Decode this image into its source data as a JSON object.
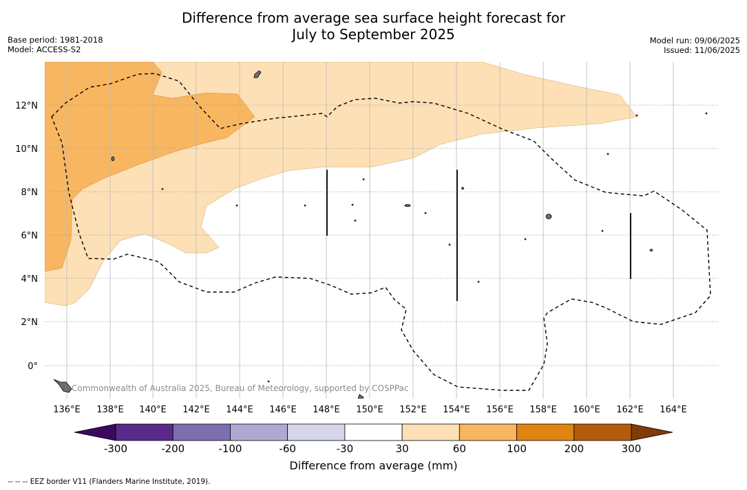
{
  "title_line1": "Difference from average sea surface height forecast for",
  "title_line2": "July to September 2025",
  "meta_left": {
    "base_period": "Base period: 1981-2018",
    "model": "Model: ACCESS-S2"
  },
  "meta_right": {
    "model_run": "Model run: 09/06/2025",
    "issued": "Issued: 11/06/2025"
  },
  "copyright": "Commonwealth of Australia 2025, Bureau of Meteorology, supported by COSPPac",
  "lon_labels": [
    "136°E",
    "138°E",
    "140°E",
    "142°E",
    "144°E",
    "146°E",
    "148°E",
    "150°E",
    "152°E",
    "154°E",
    "156°E",
    "158°E",
    "160°E",
    "162°E",
    "164°E"
  ],
  "lat_labels": [
    "12°N",
    "10°N",
    "8°N",
    "6°N",
    "4°N",
    "2°N",
    "0°"
  ],
  "colorbar": {
    "title": "Difference from average (mm)",
    "tick_labels": [
      "-300",
      "-200",
      "-100",
      "-60",
      "-30",
      "30",
      "60",
      "100",
      "200",
      "300"
    ],
    "colors": [
      "#5a2a8a",
      "#7d6fae",
      "#b0a8d3",
      "#d6d6ea",
      "#ffffff",
      "#fde0b6",
      "#f9b660",
      "#e08412",
      "#b35c0b"
    ],
    "under_color": "#3b0a5c",
    "over_color": "#7f3b08"
  },
  "map_colors": {
    "light_orange": "#fde0b6",
    "mid_orange": "#f9b660",
    "land": "#6e6e6e"
  },
  "footnote": "--  --  -- EEZ border V11 (Flanders Marine Institute, 2019)."
}
